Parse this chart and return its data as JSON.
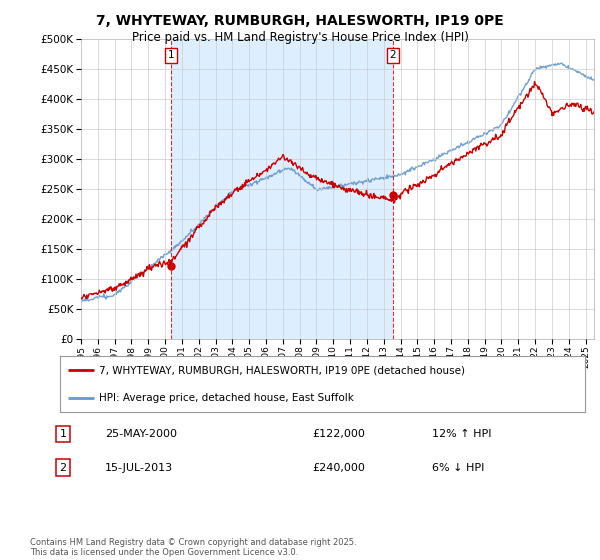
{
  "title": "7, WHYTEWAY, RUMBURGH, HALESWORTH, IP19 0PE",
  "subtitle": "Price paid vs. HM Land Registry's House Price Index (HPI)",
  "legend_line1": "7, WHYTEWAY, RUMBURGH, HALESWORTH, IP19 0PE (detached house)",
  "legend_line2": "HPI: Average price, detached house, East Suffolk",
  "annotation1_date": "25-MAY-2000",
  "annotation1_price": "£122,000",
  "annotation1_hpi": "12% ↑ HPI",
  "annotation2_date": "15-JUL-2013",
  "annotation2_price": "£240,000",
  "annotation2_hpi": "6% ↓ HPI",
  "copyright": "Contains HM Land Registry data © Crown copyright and database right 2025.\nThis data is licensed under the Open Government Licence v3.0.",
  "house_color": "#cc0000",
  "hpi_color": "#6699cc",
  "shade_color": "#ddeeff",
  "ylim": [
    0,
    500000
  ],
  "yticks": [
    0,
    50000,
    100000,
    150000,
    200000,
    250000,
    300000,
    350000,
    400000,
    450000,
    500000
  ],
  "xlim_start": 1995,
  "xlim_end": 2025.5,
  "sale1_year": 2000.375,
  "sale2_year": 2013.542,
  "sale1_price": 122000,
  "sale2_price": 240000,
  "background_color": "#ffffff",
  "grid_color": "#cccccc"
}
